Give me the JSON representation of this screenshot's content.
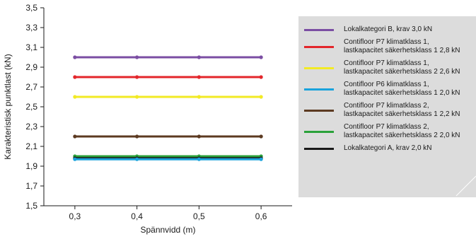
{
  "chart_data": {
    "type": "line",
    "xlabel": "Spännvidd (m)",
    "ylabel": "Karakteristisk punktlast (kN)",
    "x": [
      0.3,
      0.4,
      0.5,
      0.6
    ],
    "x_tick_labels": [
      "0,3",
      "0,4",
      "0,5",
      "0,6"
    ],
    "xlim": [
      0.25,
      0.65
    ],
    "ylim": [
      1.5,
      3.5
    ],
    "y_ticks": [
      1.5,
      1.7,
      1.9,
      2.1,
      2.3,
      2.5,
      2.7,
      2.9,
      3.1,
      3.3,
      3.5
    ],
    "y_tick_labels": [
      "1,5",
      "1,7",
      "1,9",
      "2,1",
      "2,3",
      "2,5",
      "2,7",
      "2,9",
      "3,1",
      "3,3",
      "3,5"
    ],
    "grid": false,
    "legend_position": "right",
    "series": [
      {
        "name": "Lokalkategori B, krav 3,0 kN",
        "color": "#7b4ea3",
        "values": [
          3.0,
          3.0,
          3.0,
          3.0
        ]
      },
      {
        "name": "Contifloor P7 klimatklass 1,\nlastkapacitet säkerhetsklass 1 2,8 kN",
        "color": "#e3262b",
        "values": [
          2.8,
          2.8,
          2.8,
          2.8
        ]
      },
      {
        "name": "Contifloor P7 klimatklass 1,\nlastkapacitet säkerhetsklass 2 2,6 kN",
        "color": "#f2ea24",
        "values": [
          2.6,
          2.6,
          2.6,
          2.6
        ]
      },
      {
        "name": "Contifloor P6 klimatklass 1,\nlastkapacitet säkerhetsklass 1 2,0 kN",
        "color": "#1aa3dc",
        "values": [
          1.97,
          1.97,
          1.97,
          1.97
        ]
      },
      {
        "name": "Contifloor P7 klimatklass 2,\nlastkapacitet säkerhetsklass 1 2,2 kN",
        "color": "#5c3a21",
        "values": [
          2.2,
          2.2,
          2.2,
          2.2
        ]
      },
      {
        "name": "Contifloor P7 klimatklass 2,\nlastkapacitet säkerhetsklass 2 2,0 kN",
        "color": "#2aa13a",
        "values": [
          2.0,
          2.0,
          2.0,
          2.0
        ]
      },
      {
        "name": "Lokalkategori A, krav 2,0 kN",
        "color": "#1a1a1a",
        "values": [
          1.98,
          1.98,
          1.98,
          1.98
        ]
      }
    ],
    "legend_order": [
      0,
      1,
      2,
      3,
      4,
      5,
      6
    ],
    "draw_order": [
      0,
      1,
      2,
      4,
      5,
      6,
      3
    ]
  }
}
